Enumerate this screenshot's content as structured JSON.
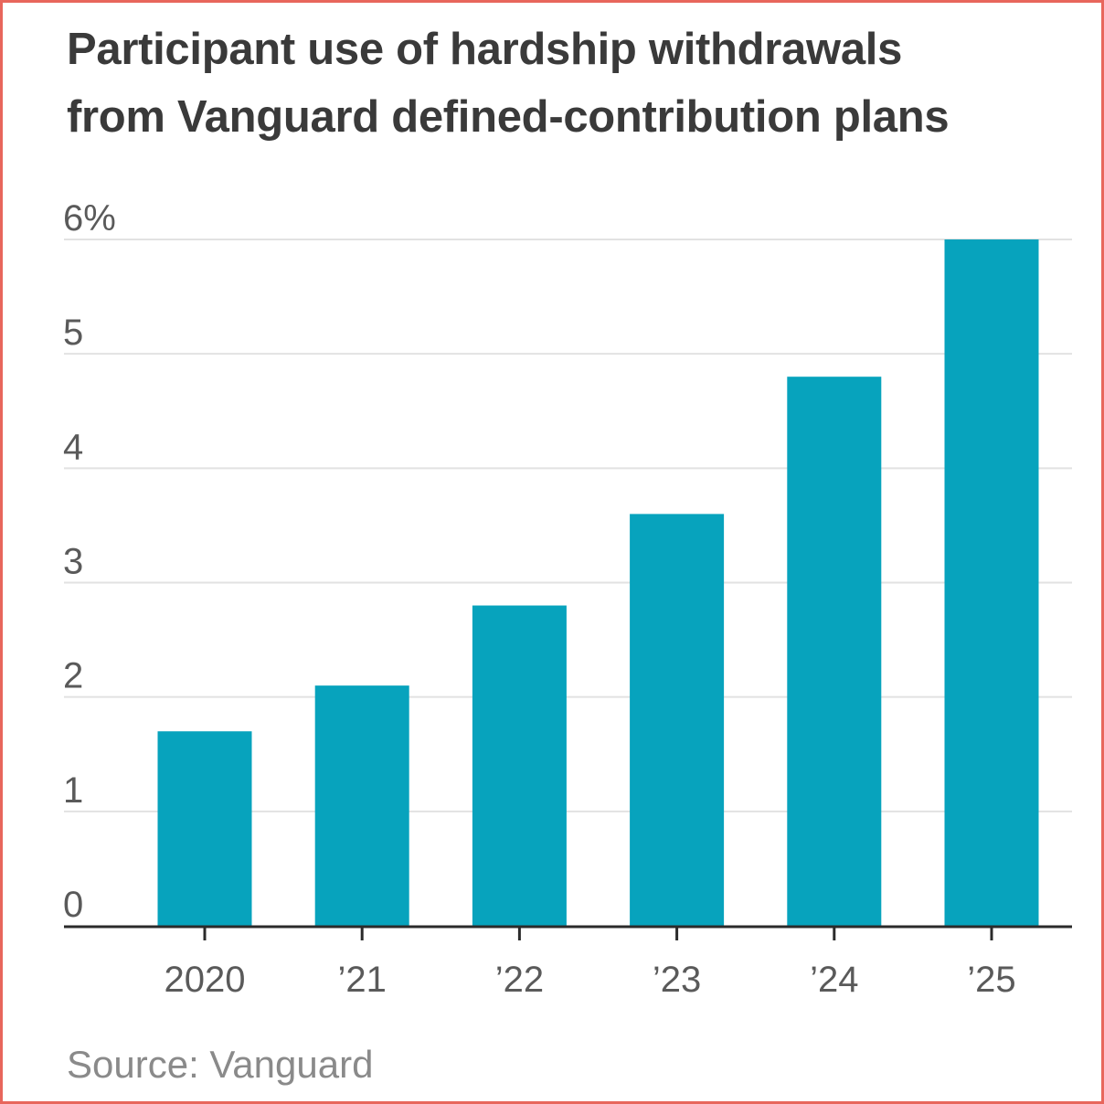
{
  "chart_data": {
    "type": "bar",
    "title_lines": [
      "Participant use of hardship withdrawals",
      "from Vanguard defined-contribution plans"
    ],
    "categories": [
      "2020",
      "’21",
      "’22",
      "’23",
      "’24",
      "’25"
    ],
    "values": [
      1.7,
      2.1,
      2.8,
      3.6,
      4.8,
      6.0
    ],
    "y_ticks": [
      "0",
      "1",
      "2",
      "3",
      "4",
      "5",
      "6%"
    ],
    "ylim": [
      0,
      6
    ],
    "grid": true,
    "bar_color": "#07a3bd",
    "source": "Source: Vanguard"
  }
}
